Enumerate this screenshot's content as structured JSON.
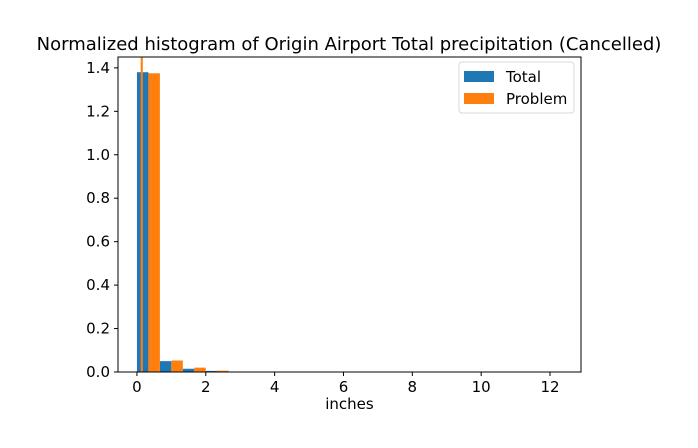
{
  "chart_data": {
    "type": "bar",
    "title": "Normalized histogram of Origin Airport Total precipitation (Cancelled)",
    "xlabel": "inches",
    "ylabel": "",
    "xlim": [
      -0.55,
      12.9
    ],
    "ylim": [
      0,
      1.45
    ],
    "xticks": [
      0,
      2,
      4,
      6,
      8,
      10,
      12
    ],
    "yticks": [
      0.0,
      0.2,
      0.4,
      0.6,
      0.8,
      1.0,
      1.2,
      1.4
    ],
    "ytick_format": 1,
    "grid": false,
    "legend_position": "top-right",
    "bar_edges": [
      0.0,
      0.667,
      1.333,
      2.0,
      2.667,
      3.333
    ],
    "series": [
      {
        "name": "Total",
        "color": "#1f77b4",
        "values": [
          1.38,
          0.05,
          0.015,
          0.005,
          0.002
        ]
      },
      {
        "name": "Problem",
        "color": "#ff7f0e",
        "values": [
          1.375,
          0.053,
          0.02,
          0.006,
          0.002
        ]
      }
    ],
    "extra_marks": [
      {
        "series": "Problem",
        "x0": 0.11,
        "x1": 0.17,
        "value": 1.45
      }
    ]
  }
}
